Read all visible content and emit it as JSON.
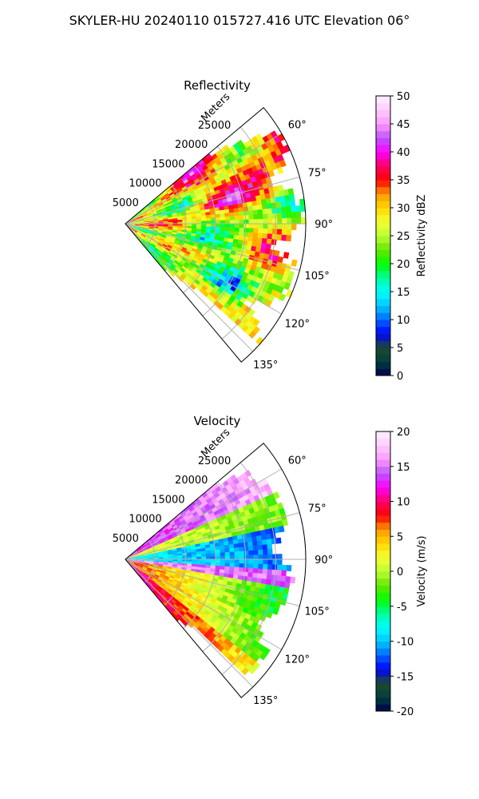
{
  "figure_title": "SKYLER-HU  20240110  015727.416 UTC Elevation 06°",
  "chart_data": [
    {
      "type": "heatmap",
      "projection": "polar-sector",
      "title": "Reflectivity",
      "radial_label": "Meters",
      "radial_ticks": [
        "5000",
        "10000",
        "15000",
        "20000",
        "25000"
      ],
      "radial_tick_values": [
        5000,
        10000,
        15000,
        20000,
        25000
      ],
      "rlim": [
        0,
        30000
      ],
      "angle_ticks": [
        "60°",
        "75°",
        "90°",
        "105°",
        "120°",
        "135°"
      ],
      "angle_tick_values": [
        60,
        75,
        90,
        105,
        120,
        135
      ],
      "azimuth_range": [
        50,
        140
      ],
      "grid": true,
      "colorbar": {
        "label": "Reflectivity dBZ",
        "ticks": [
          "0",
          "5",
          "10",
          "15",
          "20",
          "25",
          "30",
          "35",
          "40",
          "45",
          "50"
        ],
        "range": [
          0,
          50
        ],
        "colormap": [
          "#00004a",
          "#003f3f",
          "#1f4a2a",
          "#0000ff",
          "#0066ff",
          "#00c8ff",
          "#00ffff",
          "#00ff99",
          "#00ff00",
          "#66e600",
          "#bbff33",
          "#f5ff33",
          "#ffd700",
          "#ff9900",
          "#ff0000",
          "#ff0066",
          "#ff00ff",
          "#bb55ff",
          "#ff99ff",
          "#ffccff",
          "#fff0ff"
        ]
      }
    },
    {
      "type": "heatmap",
      "projection": "polar-sector",
      "title": "Velocity",
      "radial_label": "Meters",
      "radial_ticks": [
        "5000",
        "10000",
        "15000",
        "20000",
        "25000"
      ],
      "radial_tick_values": [
        5000,
        10000,
        15000,
        20000,
        25000
      ],
      "rlim": [
        0,
        30000
      ],
      "angle_ticks": [
        "60°",
        "75°",
        "90°",
        "105°",
        "120°",
        "135°"
      ],
      "angle_tick_values": [
        60,
        75,
        90,
        105,
        120,
        135
      ],
      "azimuth_range": [
        50,
        140
      ],
      "grid": true,
      "colorbar": {
        "label": "Velocity (m/s)",
        "ticks": [
          "-20",
          "-15",
          "-10",
          "-5",
          "0",
          "5",
          "10",
          "15",
          "20"
        ],
        "range": [
          -20,
          20
        ],
        "colormap": [
          "#00004a",
          "#003f3f",
          "#1f4a2a",
          "#0000ff",
          "#0066ff",
          "#00c8ff",
          "#00ffff",
          "#00ff99",
          "#00ff00",
          "#66e600",
          "#bbff33",
          "#f5ff33",
          "#ffd700",
          "#ff9900",
          "#ff0000",
          "#ff0066",
          "#ff00ff",
          "#bb55ff",
          "#ff99ff",
          "#ffccff",
          "#fff0ff"
        ]
      }
    }
  ]
}
